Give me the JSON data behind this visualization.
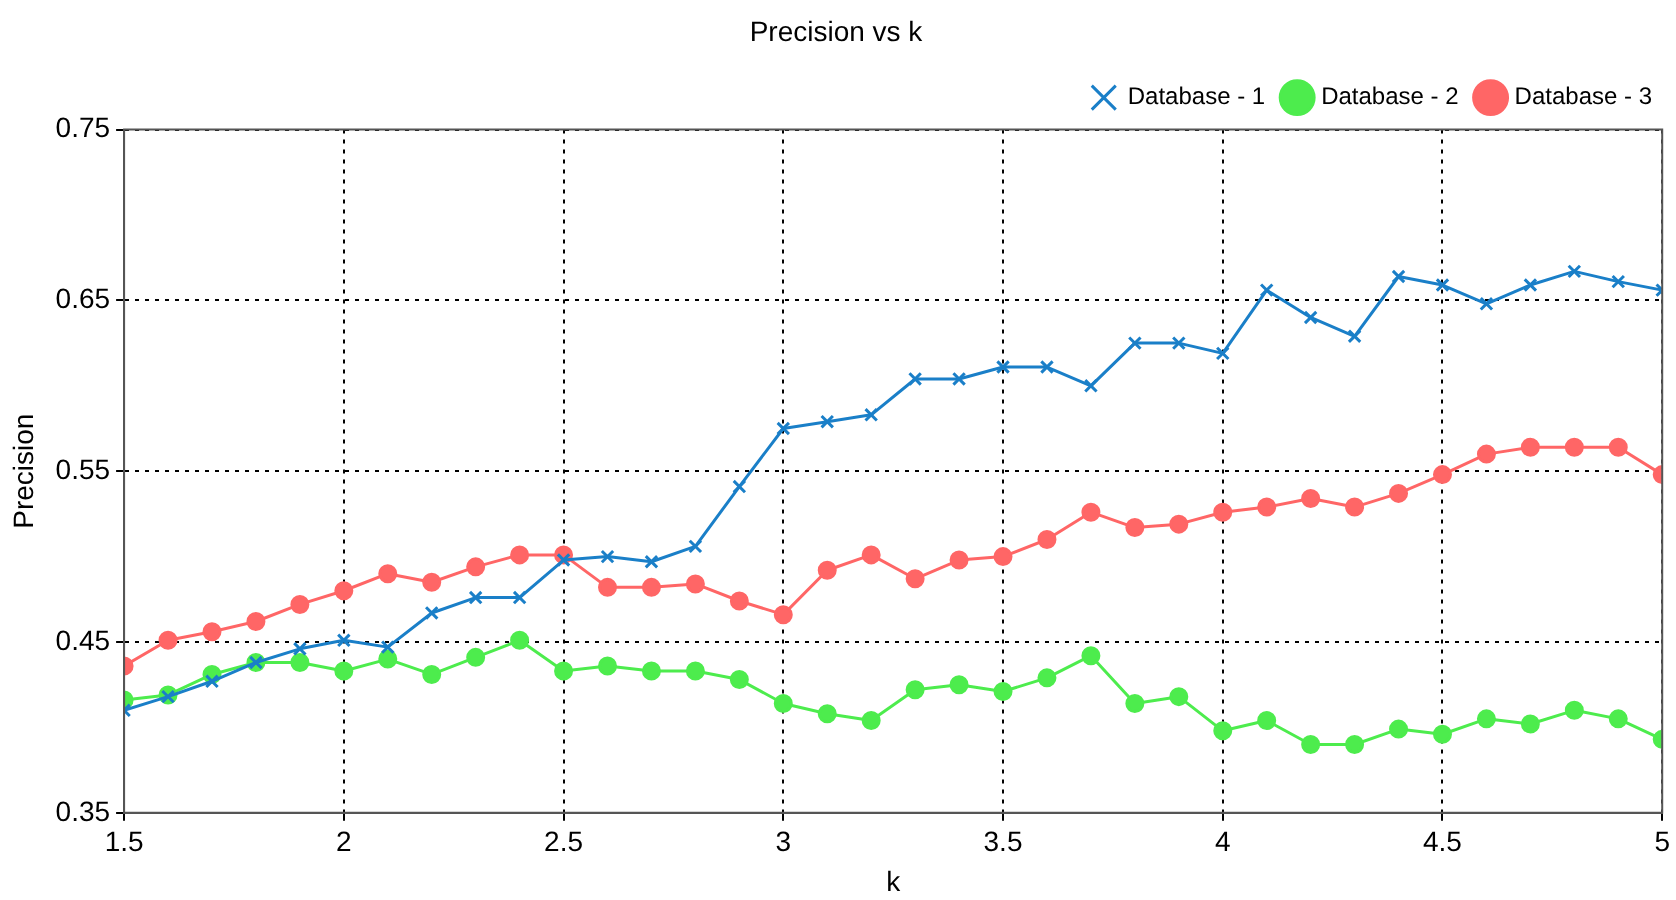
{
  "chart_data": {
    "type": "line",
    "title": "Precision vs k",
    "xlabel": "k",
    "ylabel": "Precision",
    "x": [
      1.5,
      1.6,
      1.7,
      1.8,
      1.9,
      2.0,
      2.1,
      2.2,
      2.3,
      2.4,
      2.5,
      2.6,
      2.7,
      2.8,
      2.9,
      3.0,
      3.1,
      3.2,
      3.3,
      3.4,
      3.5,
      3.6,
      3.7,
      3.8,
      3.9,
      4.0,
      4.1,
      4.2,
      4.3,
      4.4,
      4.5,
      4.6,
      4.7,
      4.8,
      4.9,
      5.0
    ],
    "series": [
      {
        "name": "Database - 1",
        "color": "#1a7fc8",
        "marker": "cross",
        "values": [
          0.41,
          0.418,
          0.427,
          0.438,
          0.446,
          0.451,
          0.447,
          0.467,
          0.476,
          0.476,
          0.498,
          0.5,
          0.497,
          0.506,
          0.541,
          0.575,
          0.579,
          0.583,
          0.604,
          0.604,
          0.611,
          0.611,
          0.6,
          0.625,
          0.625,
          0.619,
          0.656,
          0.64,
          0.629,
          0.664,
          0.659,
          0.648,
          0.659,
          0.667,
          0.661,
          0.656
        ]
      },
      {
        "name": "Database - 2",
        "color": "#4dec4d",
        "marker": "circle",
        "values": [
          0.416,
          0.419,
          0.431,
          0.438,
          0.438,
          0.433,
          0.44,
          0.431,
          0.441,
          0.451,
          0.433,
          0.436,
          0.433,
          0.433,
          0.428,
          0.414,
          0.408,
          0.404,
          0.422,
          0.425,
          0.421,
          0.429,
          0.442,
          0.414,
          0.418,
          0.398,
          0.404,
          0.39,
          0.39,
          0.399,
          0.396,
          0.405,
          0.402,
          0.41,
          0.405,
          0.393
        ]
      },
      {
        "name": "Database - 3",
        "color": "#ff6666",
        "marker": "circle",
        "values": [
          0.436,
          0.451,
          0.456,
          0.462,
          0.472,
          0.48,
          0.49,
          0.485,
          0.494,
          0.501,
          0.501,
          0.482,
          0.482,
          0.484,
          0.474,
          0.466,
          0.492,
          0.501,
          0.487,
          0.498,
          0.5,
          0.51,
          0.526,
          0.517,
          0.519,
          0.526,
          0.529,
          0.534,
          0.529,
          0.537,
          0.548,
          0.56,
          0.564,
          0.564,
          0.564,
          0.548
        ]
      }
    ],
    "xlim": [
      1.5,
      5
    ],
    "xticks": [
      1.5,
      2,
      2.5,
      3,
      3.5,
      4,
      4.5,
      5
    ],
    "ylim": [
      0.35,
      0.75
    ],
    "yticks": [
      0.35,
      0.45,
      0.55,
      0.65,
      0.75
    ],
    "grid": true,
    "legend": "top right",
    "line_style": "solid"
  }
}
